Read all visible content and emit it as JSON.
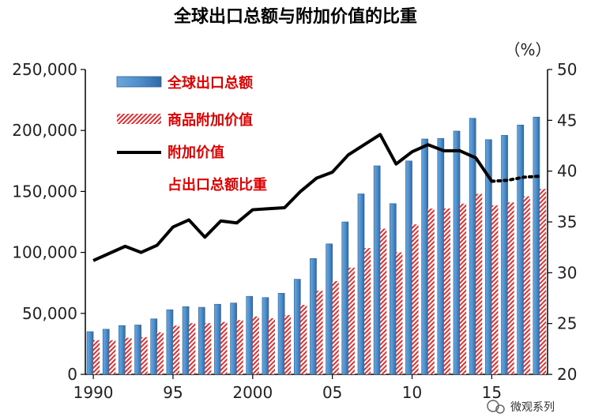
{
  "title": "全球出口总额与附加价值的比重",
  "watermark": "微观系列",
  "chart_data": {
    "type": "bar",
    "x": [
      1990,
      1991,
      1992,
      1993,
      1994,
      1995,
      1996,
      1997,
      1998,
      1999,
      2000,
      2001,
      2002,
      2003,
      2004,
      2005,
      2006,
      2007,
      2008,
      2009,
      2010,
      2011,
      2012,
      2013,
      2014,
      2015,
      2016,
      2017,
      2018
    ],
    "xticks": [
      "1990",
      "95",
      "2000",
      "05",
      "10",
      "15"
    ],
    "yticks_left": [
      "0",
      "50,000",
      "100,000",
      "150,000",
      "200,000",
      "250,000"
    ],
    "yticks_right": [
      "20",
      "25",
      "30",
      "35",
      "40",
      "45",
      "50"
    ],
    "right_unit": "（%）",
    "ylim_left": [
      0,
      250000
    ],
    "ylim_right": [
      20,
      50
    ],
    "series": [
      {
        "name": "全球出口总额",
        "kind": "bar",
        "axis": "left",
        "color": "#4f8fcb",
        "values": [
          35000,
          37000,
          40000,
          40500,
          45500,
          53000,
          55500,
          55000,
          57500,
          58500,
          64000,
          63000,
          66500,
          78000,
          95000,
          107000,
          125000,
          148000,
          171000,
          140000,
          175000,
          193000,
          193500,
          199500,
          210000,
          192500,
          196000,
          204500,
          211000
        ]
      },
      {
        "name": "商品附加价值",
        "kind": "bar-hatched",
        "axis": "left",
        "color": "#e03030",
        "values": [
          28000,
          28000,
          30000,
          30500,
          34500,
          40000,
          42000,
          42000,
          43000,
          44500,
          47500,
          46000,
          48500,
          57000,
          68500,
          76500,
          87500,
          103500,
          119500,
          100000,
          123000,
          136000,
          136000,
          140000,
          148000,
          138500,
          141000,
          146000,
          152000
        ]
      },
      {
        "name": "附加价值占出口总额比重",
        "kind": "line",
        "axis": "right",
        "color": "#000000",
        "values": [
          31.2,
          31.9,
          32.6,
          32.0,
          32.7,
          34.5,
          35.2,
          33.5,
          35.1,
          34.9,
          36.2,
          36.3,
          36.4,
          38.0,
          39.3,
          39.9,
          41.6,
          42.6,
          43.6,
          40.7,
          41.9,
          42.6,
          42.0,
          42.0,
          41.3,
          39.0,
          39.1,
          39.4,
          39.5
        ]
      }
    ],
    "legend": {
      "position": "top-left",
      "items": [
        "全球出口总额",
        "商品附加价值",
        "附加价值",
        "占出口总额比重"
      ]
    }
  }
}
